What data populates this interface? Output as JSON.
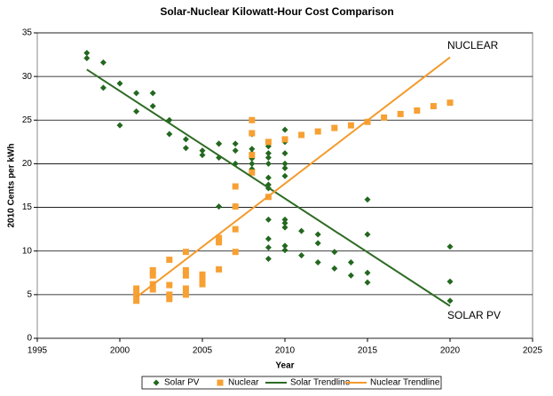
{
  "chart_data": {
    "type": "scatter",
    "title": "Solar-Nuclear Kilowatt-Hour Cost Comparison",
    "x_label": "Year",
    "y_label": "2010 Cents per kWh",
    "xlim": [
      1995,
      2025
    ],
    "xticks": [
      1995,
      2000,
      2005,
      2010,
      2015,
      2020,
      2025
    ],
    "ylim": [
      0,
      35
    ],
    "yticks": [
      0,
      5,
      10,
      15,
      20,
      25,
      30,
      35
    ],
    "grid": true,
    "legend": "bottom",
    "annotations": [
      "NUCLEAR",
      "SOLAR PV"
    ],
    "series": [
      {
        "name": "Solar PV",
        "color": "#23681f",
        "marker": "diamond",
        "x": [
          1998,
          1998,
          1999,
          1999,
          2000,
          2000,
          2001,
          2001,
          2002,
          2002,
          2003,
          2003,
          2004,
          2004,
          2005,
          2005,
          2006,
          2006,
          2006,
          2006,
          2007,
          2007,
          2007,
          2008,
          2008,
          2008,
          2008,
          2008,
          2008,
          2009,
          2009,
          2009,
          2009,
          2009,
          2009,
          2009,
          2009,
          2009,
          2009,
          2009,
          2010,
          2010,
          2010,
          2010,
          2010,
          2010,
          2010,
          2010,
          2010,
          2010,
          2010,
          2011,
          2011,
          2012,
          2012,
          2012,
          2013,
          2013,
          2014,
          2014,
          2015,
          2015,
          2015,
          2015,
          2020,
          2020,
          2020
        ],
        "values": [
          32.7,
          32.1,
          31.6,
          28.7,
          29.2,
          24.4,
          28.1,
          26.0,
          28.1,
          26.6,
          25.0,
          23.4,
          22.8,
          21.8,
          21.5,
          21.0,
          22.3,
          22.3,
          20.7,
          15.1,
          22.3,
          21.5,
          20.0,
          23.4,
          21.7,
          21.2,
          20.6,
          20.0,
          19.4,
          22.0,
          21.2,
          20.7,
          20.0,
          18.4,
          17.6,
          17.2,
          13.6,
          11.4,
          10.4,
          9.1,
          23.9,
          22.5,
          21.2,
          20.0,
          19.5,
          18.6,
          13.6,
          13.2,
          12.7,
          10.6,
          10.1,
          12.3,
          9.5,
          11.9,
          10.9,
          8.7,
          9.9,
          8.0,
          8.7,
          7.2,
          15.9,
          11.9,
          7.5,
          6.4,
          10.5,
          6.5,
          4.3
        ]
      },
      {
        "name": "Nuclear",
        "color": "#f7a033",
        "marker": "square",
        "x": [
          2001,
          2001,
          2001,
          2002,
          2002,
          2002,
          2002,
          2003,
          2003,
          2003,
          2003,
          2004,
          2004,
          2004,
          2004,
          2004,
          2005,
          2005,
          2005,
          2006,
          2006,
          2006,
          2007,
          2007,
          2007,
          2007,
          2008,
          2008,
          2008,
          2008,
          2009,
          2009,
          2010,
          2011,
          2012,
          2013,
          2014,
          2015,
          2016,
          2017,
          2018,
          2019,
          2020
        ],
        "values": [
          5.7,
          5.0,
          4.3,
          7.8,
          7.2,
          6.2,
          5.6,
          9.0,
          6.1,
          5.0,
          4.5,
          9.9,
          7.8,
          7.2,
          5.7,
          5.0,
          7.3,
          6.8,
          6.2,
          11.5,
          11.0,
          7.9,
          17.4,
          15.1,
          12.5,
          9.9,
          25.0,
          23.5,
          21.0,
          19.0,
          22.5,
          16.2,
          22.8,
          23.3,
          23.7,
          24.1,
          24.4,
          24.8,
          25.3,
          25.7,
          26.1,
          26.6,
          27.0
        ]
      },
      {
        "name": "Solar Trendline",
        "color": "#2e6b24",
        "marker": "line",
        "x": [
          1998,
          2020
        ],
        "values": [
          30.8,
          3.7
        ]
      },
      {
        "name": "Nuclear Trendline",
        "color": "#f49a2c",
        "marker": "line",
        "x": [
          2001,
          2020
        ],
        "values": [
          4.7,
          32.2
        ]
      }
    ]
  }
}
